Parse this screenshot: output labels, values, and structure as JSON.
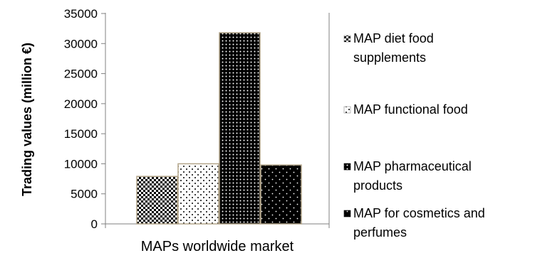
{
  "chart_data": {
    "type": "bar",
    "ylabel": "Trading values (million €)",
    "xlabel": "MAPs worldwide market",
    "ylim": [
      0,
      35000
    ],
    "yticks": [
      "35000",
      "30000",
      "25000",
      "20000",
      "15000",
      "10000",
      "5000",
      "0"
    ],
    "categories": [
      "MAPs worldwide market"
    ],
    "legend_position": "right",
    "series": [
      {
        "name": "MAP diet food supplements",
        "legend_lines": [
          "MAP diet food",
          "supplements"
        ],
        "values": [
          7900
        ],
        "pattern": "checker",
        "fill": "#ffffff",
        "ink": "#000000",
        "border": "#b3a58a"
      },
      {
        "name": "MAP functional food",
        "legend_lines": [
          "MAP functional food"
        ],
        "values": [
          10000
        ],
        "pattern": "sparse-dots",
        "fill": "#ffffff",
        "ink": "#000000",
        "border": "#b3a58a"
      },
      {
        "name": "MAP pharmaceutical products",
        "legend_lines": [
          "MAP pharmaceutical",
          "products"
        ],
        "values": [
          31800
        ],
        "pattern": "dense-dots",
        "fill": "#000000",
        "ink": "#ffffff",
        "border": "#b3a58a"
      },
      {
        "name": "MAP for cosmetics and perfumes",
        "legend_lines": [
          "MAP for cosmetics and",
          "perfumes"
        ],
        "values": [
          9800
        ],
        "pattern": "light-dots",
        "fill": "#000000",
        "ink": "#ffffff",
        "border": "#b3a58a"
      }
    ]
  }
}
